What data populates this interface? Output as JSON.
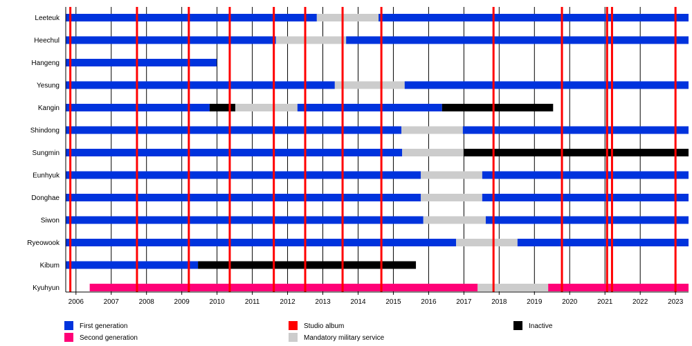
{
  "chart_data": {
    "type": "timeline",
    "title": "",
    "xlim": [
      2005.71,
      2023.37
    ],
    "x_ticks": [
      2006,
      2007,
      2008,
      2009,
      2010,
      2011,
      2012,
      2013,
      2014,
      2015,
      2016,
      2017,
      2018,
      2019,
      2020,
      2021,
      2022,
      2023
    ],
    "colors": {
      "first": "#0033dd",
      "second": "#ff0077",
      "album": "#ff0000",
      "military": "#cccccc",
      "inactive": "#000000"
    },
    "legend": [
      {
        "key": "first",
        "label": "First generation"
      },
      {
        "key": "second",
        "label": "Second generation"
      },
      {
        "key": "album",
        "label": "Studio album"
      },
      {
        "key": "military",
        "label": "Mandatory military service"
      },
      {
        "key": "inactive",
        "label": "Inactive"
      }
    ],
    "albums": [
      2005.84,
      2007.73,
      2009.2,
      2010.36,
      2011.61,
      2012.5,
      2013.56,
      2014.66,
      2017.84,
      2019.78,
      2021.06,
      2021.2,
      2023.0
    ],
    "members": [
      {
        "name": "Leeteuk",
        "segments": [
          [
            "first",
            2005.71,
            2012.83
          ],
          [
            "military",
            2012.83,
            2014.58
          ],
          [
            "first",
            2014.58,
            2023.37
          ]
        ]
      },
      {
        "name": "Heechul",
        "segments": [
          [
            "first",
            2005.71,
            2011.67
          ],
          [
            "military",
            2011.67,
            2013.66
          ],
          [
            "first",
            2013.66,
            2023.37
          ]
        ]
      },
      {
        "name": "Hangeng",
        "segments": [
          [
            "first",
            2005.71,
            2009.99
          ]
        ]
      },
      {
        "name": "Yesung",
        "segments": [
          [
            "first",
            2005.71,
            2013.34
          ],
          [
            "military",
            2013.34,
            2015.32
          ],
          [
            "first",
            2015.32,
            2023.37
          ]
        ]
      },
      {
        "name": "Kangin",
        "segments": [
          [
            "first",
            2005.71,
            2009.79
          ],
          [
            "inactive",
            2009.79,
            2010.52
          ],
          [
            "military",
            2010.52,
            2012.28
          ],
          [
            "first",
            2012.28,
            2016.38
          ],
          [
            "inactive",
            2016.38,
            2019.53
          ]
        ]
      },
      {
        "name": "Shindong",
        "segments": [
          [
            "first",
            2005.71,
            2015.23
          ],
          [
            "military",
            2015.23,
            2016.97
          ],
          [
            "first",
            2016.97,
            2023.37
          ]
        ]
      },
      {
        "name": "Sungmin",
        "segments": [
          [
            "first",
            2005.71,
            2015.25
          ],
          [
            "military",
            2015.25,
            2016.99
          ],
          [
            "inactive",
            2016.99,
            2023.37
          ]
        ]
      },
      {
        "name": "Eunhyuk",
        "segments": [
          [
            "first",
            2005.71,
            2015.78
          ],
          [
            "military",
            2015.78,
            2017.52
          ],
          [
            "first",
            2017.52,
            2023.37
          ]
        ]
      },
      {
        "name": "Donghae",
        "segments": [
          [
            "first",
            2005.71,
            2015.78
          ],
          [
            "military",
            2015.78,
            2017.52
          ],
          [
            "first",
            2017.52,
            2023.37
          ]
        ]
      },
      {
        "name": "Siwon",
        "segments": [
          [
            "first",
            2005.71,
            2015.85
          ],
          [
            "military",
            2015.85,
            2017.62
          ],
          [
            "first",
            2017.62,
            2023.37
          ]
        ]
      },
      {
        "name": "Ryeowook",
        "segments": [
          [
            "first",
            2005.71,
            2016.78
          ],
          [
            "military",
            2016.78,
            2018.52
          ],
          [
            "first",
            2018.52,
            2023.37
          ]
        ]
      },
      {
        "name": "Kibum",
        "segments": [
          [
            "first",
            2005.71,
            2009.46
          ],
          [
            "inactive",
            2009.46,
            2015.64
          ]
        ]
      },
      {
        "name": "Kyuhyun",
        "segments": [
          [
            "second",
            2006.39,
            2017.39
          ],
          [
            "military",
            2017.39,
            2019.39
          ],
          [
            "second",
            2019.39,
            2023.37
          ]
        ]
      }
    ]
  }
}
